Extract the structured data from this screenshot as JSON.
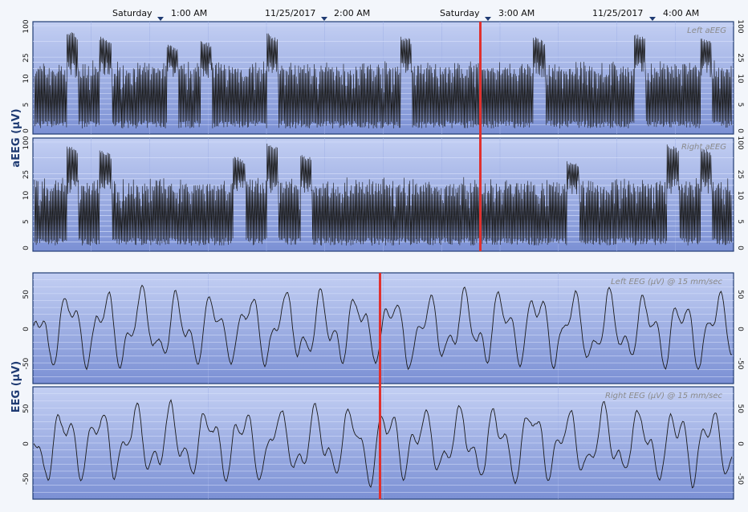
{
  "timeline": {
    "labels": [
      {
        "left": "Saturday",
        "time": "1:00 AM"
      },
      {
        "left": "11/25/2017",
        "time": "2:00 AM"
      },
      {
        "left": "Saturday",
        "time": "3:00 AM"
      },
      {
        "left": "11/25/2017",
        "time": "4:00 AM"
      }
    ]
  },
  "colors": {
    "panel_top": "#b9c7ef",
    "panel_bottom": "#7e93d6",
    "trace": "#1a1a1a",
    "cursor": "#e0312e",
    "axis_label": "#1f3b73"
  },
  "chart_data": [
    {
      "type": "line",
      "title": "Left aEEG",
      "ylabel": "aEEG (µV)",
      "yscale": "semi-log",
      "yticks": [
        "0",
        "5",
        "10",
        "25",
        "100"
      ],
      "x": [
        "00:30",
        "01:00",
        "02:00",
        "03:00",
        "04:00",
        "04:35"
      ],
      "bursts_upper_uV": [
        18,
        80,
        60,
        40,
        45,
        55,
        30,
        70,
        35,
        28,
        20,
        65,
        18,
        25,
        20,
        60,
        25,
        22,
        70,
        22,
        60
      ],
      "legend": "top-right"
    },
    {
      "type": "line",
      "title": "Right aEEG",
      "ylabel": "aEEG (µV)",
      "yscale": "semi-log",
      "yticks": [
        "0",
        "5",
        "10",
        "25",
        "100"
      ],
      "x": [
        "00:30",
        "01:00",
        "02:00",
        "03:00",
        "04:00",
        "04:35"
      ],
      "bursts_upper_uV": [
        15,
        85,
        70,
        20,
        40,
        18,
        55,
        95,
        60,
        18,
        22,
        40,
        20,
        25,
        35,
        18,
        45,
        20,
        18,
        90,
        80
      ],
      "legend": "top-right"
    },
    {
      "type": "line",
      "title": "Left EEG  (µV) @ 15 mm/sec",
      "ylabel": "EEG (µV)",
      "yticks": [
        "50",
        "0",
        "-50"
      ],
      "ylim": [
        -80,
        80
      ]
    },
    {
      "type": "line",
      "title": "Right EEG (µV) @ 15 mm/sec",
      "ylabel": "EEG (µV)",
      "yticks": [
        "50",
        "0",
        "-50"
      ],
      "ylim": [
        -80,
        80
      ]
    }
  ],
  "axis_titles": {
    "aeeg": "aEEG (µV)",
    "eeg": "EEG (µV)"
  }
}
